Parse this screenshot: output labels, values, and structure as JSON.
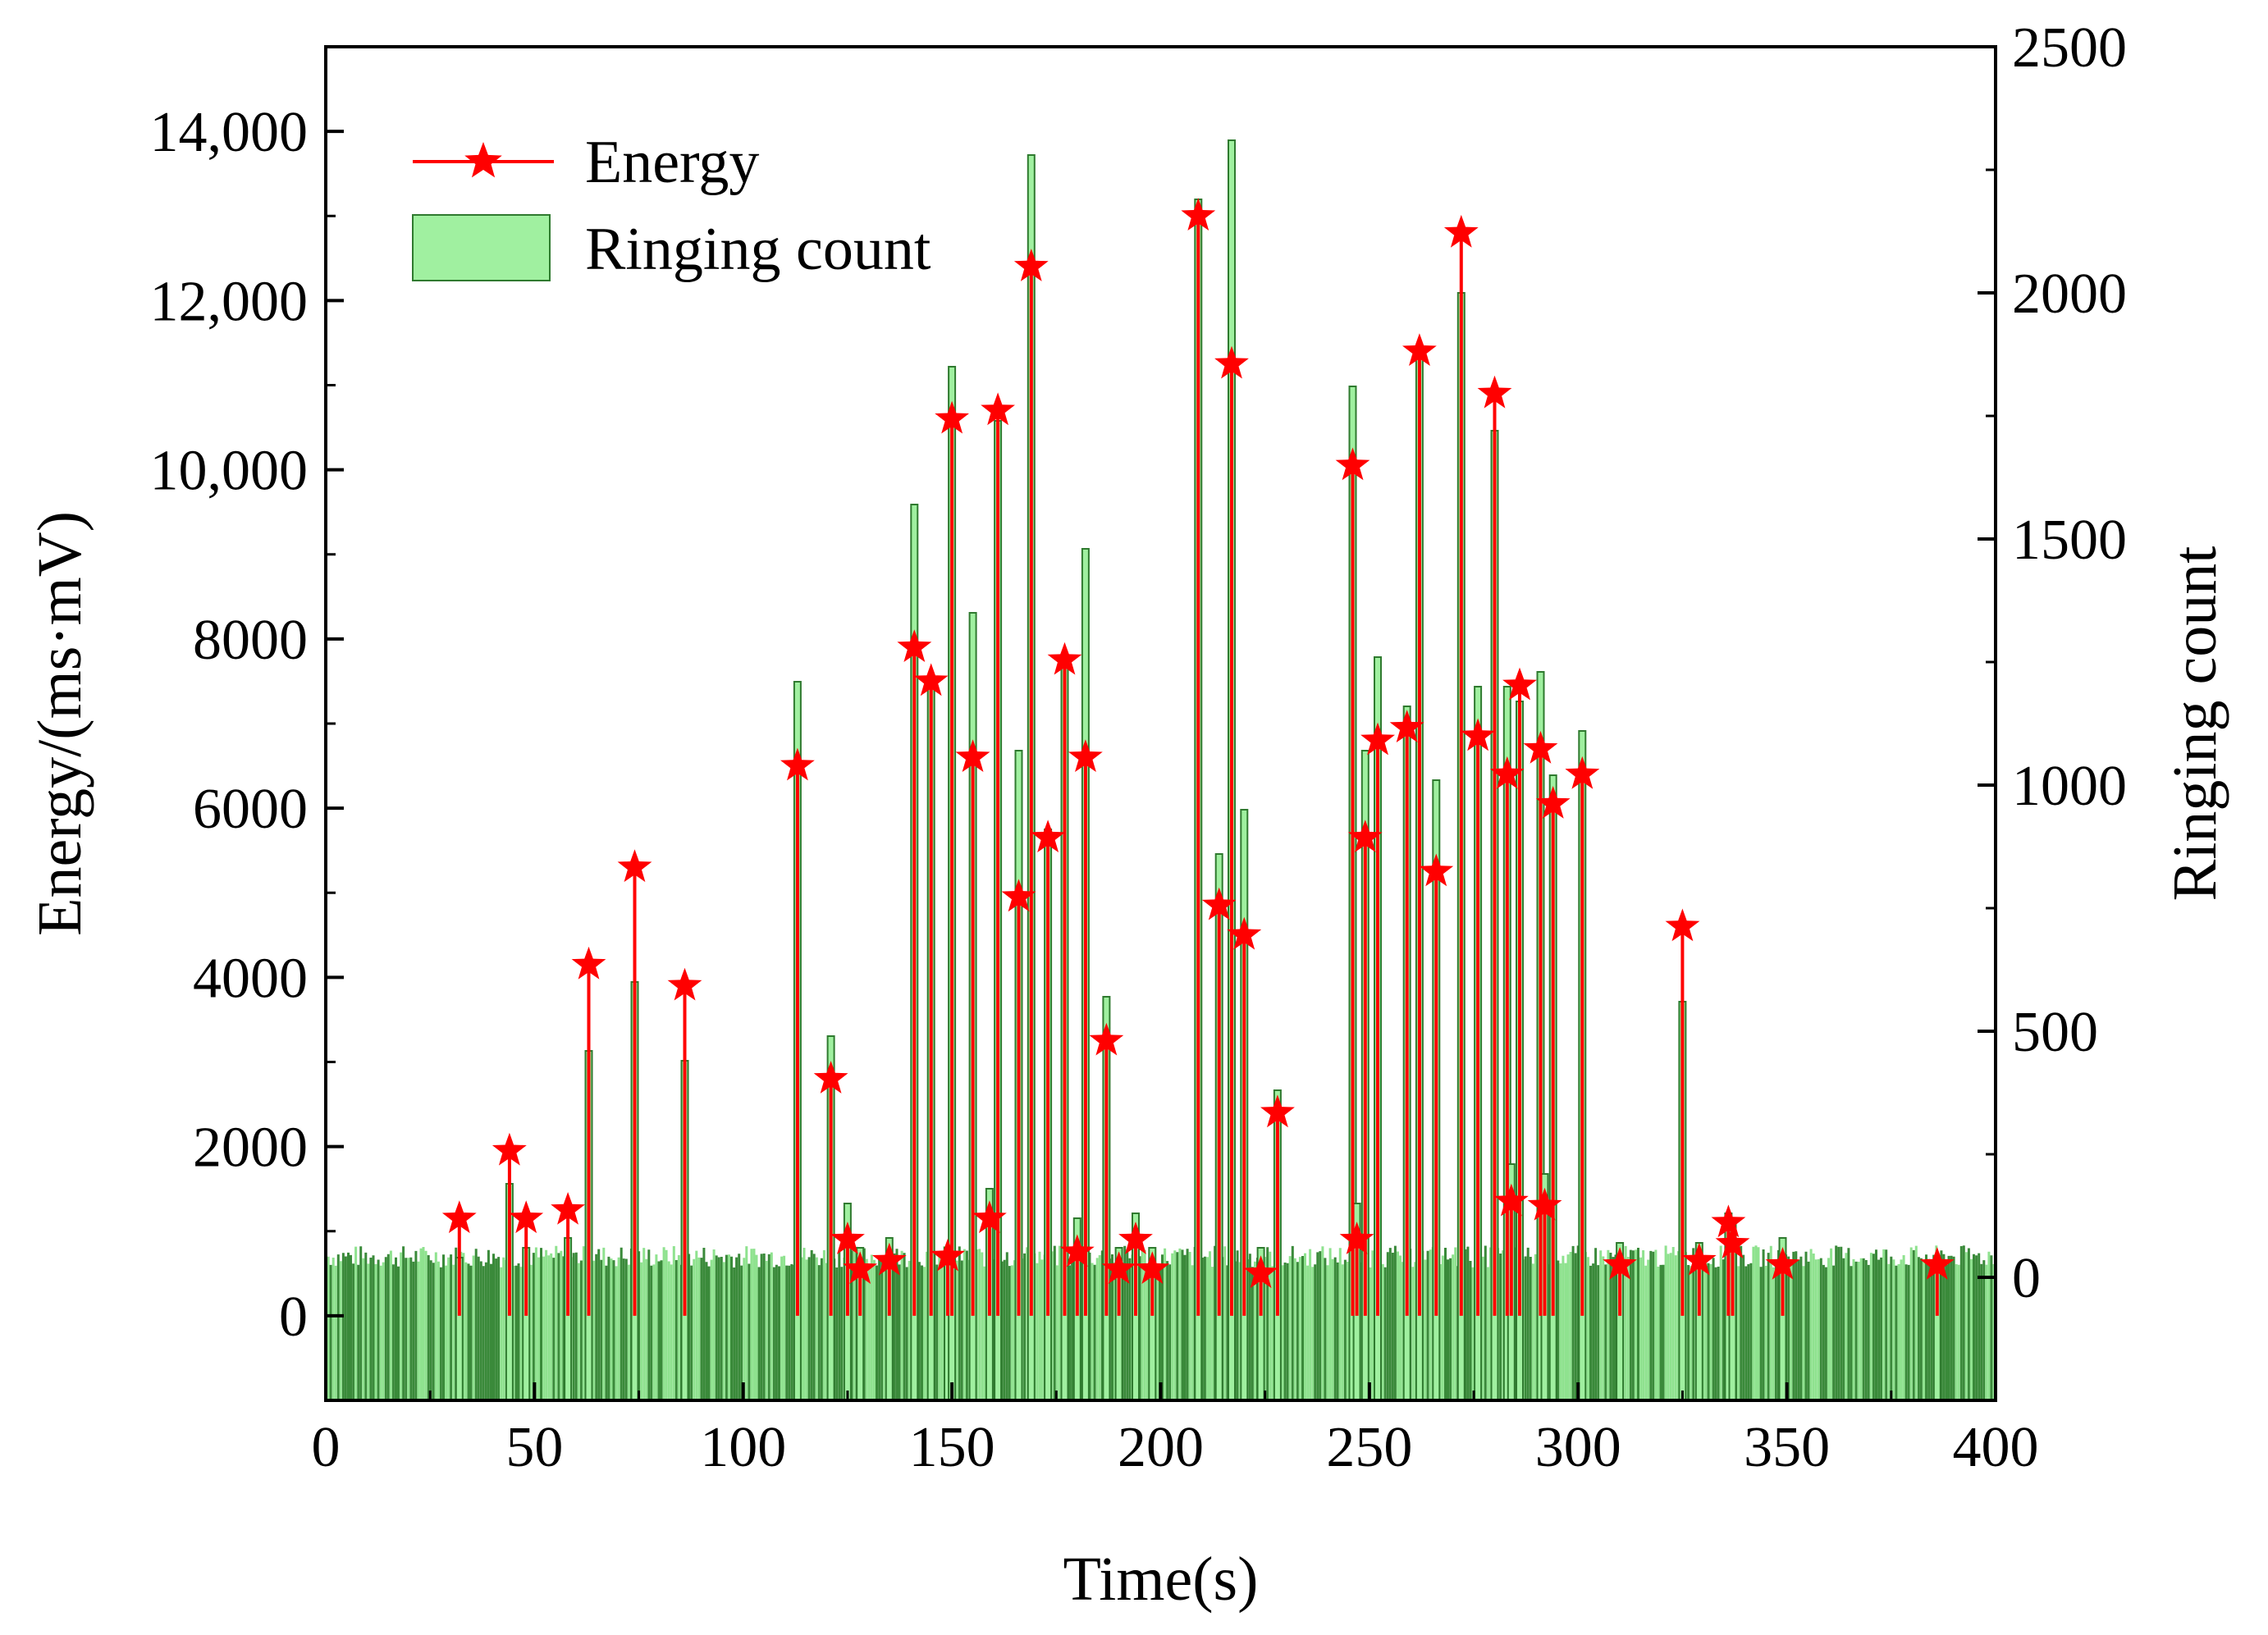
{
  "chart_data": {
    "type": "bar+line",
    "title": "",
    "xlabel": "Time(s)",
    "ylabel_left": "Energy/(ms·mV)",
    "ylabel_right": "Ringing count",
    "xlim": [
      0,
      400
    ],
    "ylim_left": [
      -1000,
      15000
    ],
    "ylim_right": [
      -250,
      2500
    ],
    "x_ticks": [
      "0",
      "50",
      "100",
      "150",
      "200",
      "250",
      "300",
      "350",
      "400"
    ],
    "y_left_ticks": [
      "0",
      "2000",
      "4000",
      "6000",
      "8000",
      "10,000",
      "12,000",
      "14,000"
    ],
    "y_right_ticks": [
      "0",
      "500",
      "1000",
      "1500",
      "2000",
      "2500"
    ],
    "legend": [
      "Energy",
      "Ringing count"
    ],
    "colors": {
      "energy": "#ff0000",
      "ringing_fill": "#a0f0a0",
      "ringing_edge": "#2f7a2f",
      "star": "#ff0000"
    },
    "series": [
      {
        "name": "Energy",
        "x": [
          32,
          44,
          48,
          58,
          63,
          74,
          86,
          113,
          121,
          125,
          128,
          135,
          141,
          145,
          149,
          150,
          155,
          159,
          161,
          166,
          169,
          173,
          177,
          180,
          182,
          187,
          190,
          194,
          198,
          209,
          214,
          217,
          220,
          224,
          228,
          246,
          247,
          249,
          252,
          259,
          262,
          266,
          272,
          276,
          280,
          283,
          284,
          286,
          291,
          292,
          294,
          301,
          310,
          325,
          329,
          336,
          337,
          349,
          386
        ],
        "y": [
          1150,
          1950,
          1150,
          1250,
          4150,
          5300,
          3900,
          6500,
          2800,
          900,
          550,
          650,
          7900,
          7500,
          700,
          10600,
          6600,
          1150,
          10700,
          4950,
          12400,
          5650,
          7750,
          750,
          6600,
          3250,
          550,
          900,
          550,
          13000,
          4850,
          11250,
          4500,
          500,
          2400,
          10050,
          900,
          5650,
          6800,
          6950,
          11400,
          5250,
          12800,
          6850,
          10900,
          6400,
          1350,
          7450,
          6700,
          1300,
          6050,
          6400,
          600,
          4600,
          650,
          1100,
          850,
          600,
          600
        ]
      },
      {
        "name": "Ringing count",
        "x": [
          32,
          44,
          48,
          58,
          63,
          74,
          86,
          113,
          121,
          125,
          128,
          135,
          141,
          145,
          149,
          150,
          155,
          159,
          161,
          166,
          169,
          173,
          177,
          180,
          182,
          187,
          190,
          194,
          198,
          209,
          214,
          217,
          220,
          224,
          228,
          246,
          247,
          249,
          252,
          259,
          262,
          266,
          272,
          276,
          280,
          283,
          284,
          286,
          291,
          292,
          294,
          301,
          310,
          325,
          329,
          336,
          337,
          349,
          386
        ],
        "y": [
          40,
          190,
          60,
          80,
          460,
          600,
          440,
          1210,
          490,
          150,
          60,
          80,
          1570,
          1210,
          60,
          1850,
          1350,
          180,
          1740,
          1070,
          2280,
          910,
          1240,
          120,
          1480,
          570,
          60,
          130,
          60,
          2190,
          860,
          2310,
          950,
          60,
          380,
          1810,
          150,
          1070,
          1260,
          1160,
          1870,
          1010,
          2000,
          1200,
          1720,
          1200,
          230,
          1170,
          1230,
          210,
          1020,
          1110,
          70,
          560,
          70,
          130,
          110,
          80,
          40
        ]
      }
    ]
  }
}
